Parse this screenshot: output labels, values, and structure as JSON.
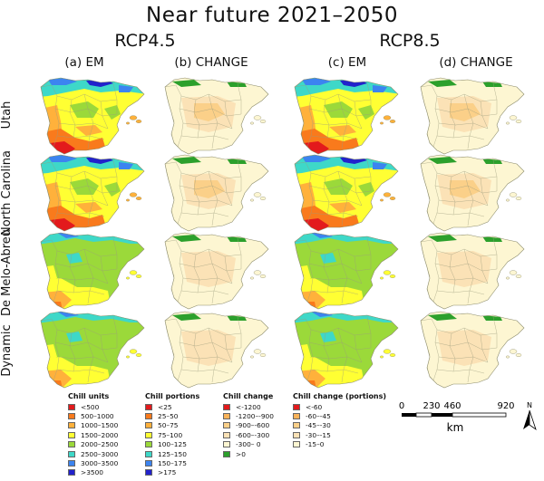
{
  "title": "Near future 2021–2050",
  "scenarios": [
    "RCP4.5",
    "RCP8.5"
  ],
  "columns": [
    "(a) EM",
    "(b) CHANGE",
    "(c) EM",
    "(d) CHANGE"
  ],
  "rows": [
    "Utah",
    "North Carolina",
    "De Melo-Abreu",
    "Dynamic"
  ],
  "legends": [
    {
      "title": "Chill units",
      "items": [
        {
          "label": "<500",
          "color": "#e31a1c"
        },
        {
          "label": "500–1000",
          "color": "#f97a1c"
        },
        {
          "label": "1000–1500",
          "color": "#ffb13b"
        },
        {
          "label": "1500–2000",
          "color": "#ffff33"
        },
        {
          "label": "2000–2500",
          "color": "#9bd93a"
        },
        {
          "label": "2500–3000",
          "color": "#3ed8c8"
        },
        {
          "label": "3000–3500",
          "color": "#3c84f0"
        },
        {
          "label": ">3500",
          "color": "#2222cc"
        }
      ]
    },
    {
      "title": "Chill portions",
      "items": [
        {
          "label": "<25",
          "color": "#e31a1c"
        },
        {
          "label": "25–50",
          "color": "#f97a1c"
        },
        {
          "label": "50–75",
          "color": "#ffb13b"
        },
        {
          "label": "75–100",
          "color": "#ffff33"
        },
        {
          "label": "100–125",
          "color": "#9bd93a"
        },
        {
          "label": "125–150",
          "color": "#3ed8c8"
        },
        {
          "label": "150–175",
          "color": "#3c84f0"
        },
        {
          "label": ">175",
          "color": "#2222cc"
        }
      ]
    },
    {
      "title": "Chill change",
      "items": [
        {
          "label": "<-1200",
          "color": "#e31a1c"
        },
        {
          "label": "-1200–-900",
          "color": "#f9b35a"
        },
        {
          "label": "-900–-600",
          "color": "#fbd089"
        },
        {
          "label": "-600–-300",
          "color": "#fbe2b6"
        },
        {
          "label": "-300– 0",
          "color": "#fdf6d2"
        },
        {
          "label": ">0",
          "color": "#2ca02c"
        }
      ]
    },
    {
      "title": "Chill change (portions)",
      "items": [
        {
          "label": "<-60",
          "color": "#e31a1c"
        },
        {
          "label": "-60–-45",
          "color": "#f9b35a"
        },
        {
          "label": "-45–-30",
          "color": "#fbd089"
        },
        {
          "label": "-30–-15",
          "color": "#fbe2b6"
        },
        {
          "label": "-15–0",
          "color": "#fdf6d2"
        }
      ]
    }
  ],
  "scalebar": {
    "ticks": [
      "0",
      "230",
      "460",
      "920"
    ],
    "unit": "km"
  },
  "north_label": "N"
}
